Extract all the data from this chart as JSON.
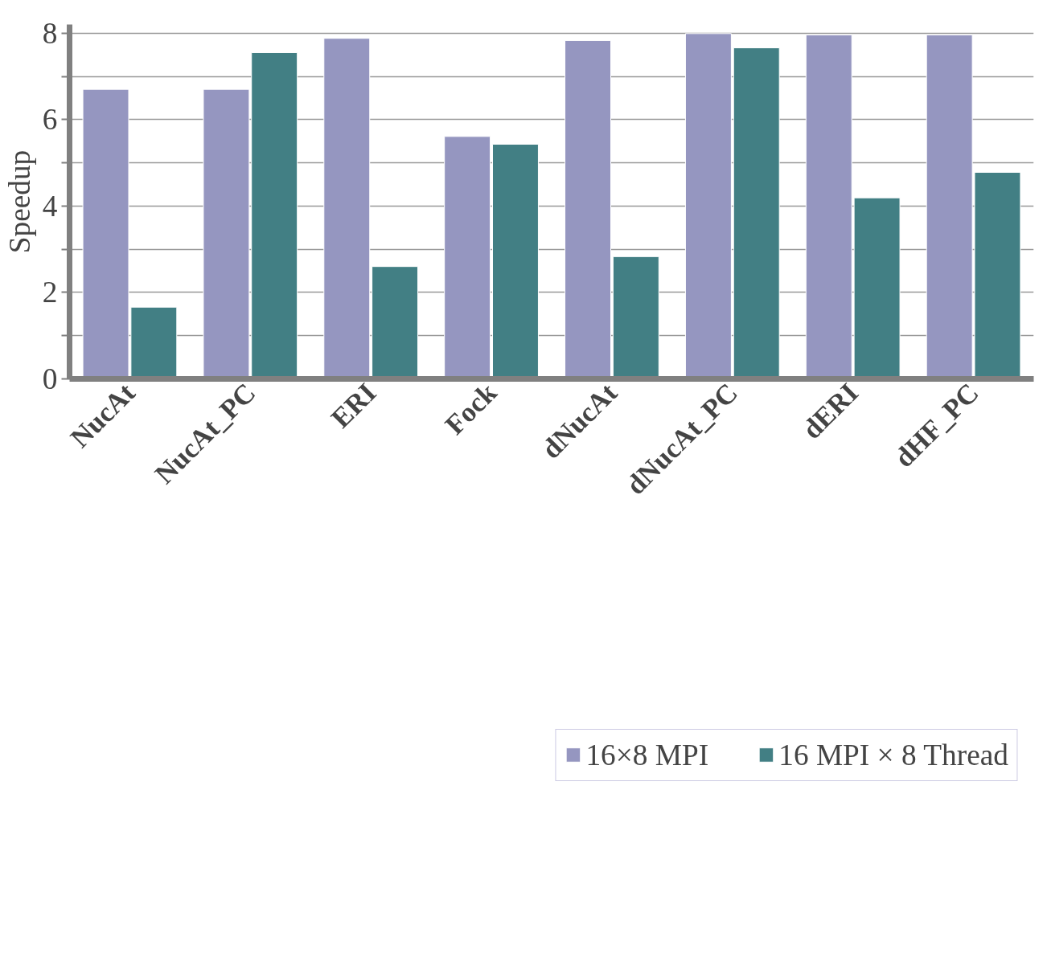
{
  "chart_data": {
    "type": "bar",
    "ylabel": "Speedup",
    "categories": [
      "NucAt",
      "NucAt_PC",
      "ERI",
      "Fock",
      "dNucAt",
      "dNucAt_PC",
      "dERI",
      "dHF_PC"
    ],
    "series": [
      {
        "name": "16×8 MPI",
        "color": "#9596c0",
        "values": [
          6.7,
          6.7,
          7.88,
          5.61,
          7.83,
          7.99,
          7.96,
          7.96
        ]
      },
      {
        "name": "16 MPI × 8 Thread",
        "color": "#427f84",
        "values": [
          1.66,
          7.55,
          2.6,
          5.43,
          2.83,
          7.66,
          4.19,
          4.78
        ]
      }
    ],
    "ylim": [
      0,
      8.2
    ],
    "yticks": [
      0,
      {
        "value": 1,
        "label": null
      },
      2,
      {
        "value": 3,
        "label": null
      },
      4,
      {
        "value": 5,
        "label": null
      },
      6,
      {
        "value": 7,
        "label": null
      },
      8
    ],
    "grid": "y",
    "legend": "bottom"
  }
}
